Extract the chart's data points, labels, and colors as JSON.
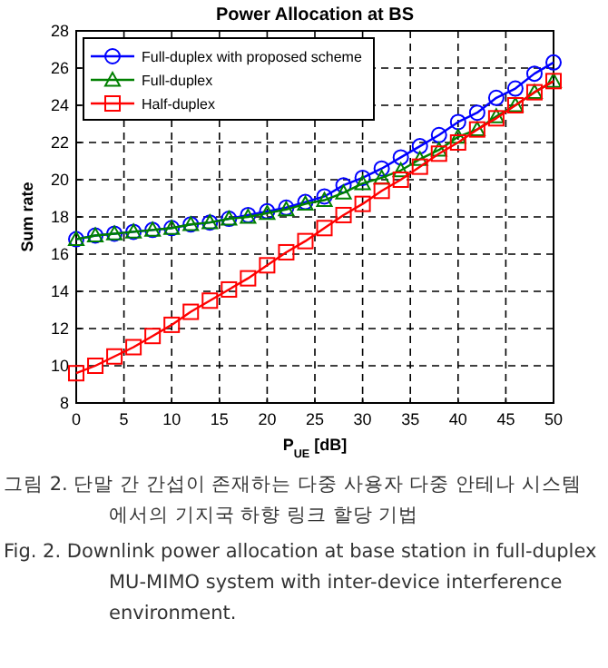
{
  "chart_data": {
    "type": "line",
    "title": "Power Allocation at BS",
    "xlabel": "P$_{UE}$ [dB]",
    "ylabel": "Sum rate",
    "x": [
      0,
      2,
      4,
      6,
      8,
      10,
      12,
      14,
      16,
      18,
      20,
      22,
      24,
      26,
      28,
      30,
      32,
      34,
      36,
      38,
      40,
      42,
      44,
      46,
      48,
      50
    ],
    "series": [
      {
        "name": "Full-duplex with proposed scheme",
        "color": "#0000ff",
        "marker": "circle",
        "values": [
          16.8,
          17.0,
          17.1,
          17.2,
          17.3,
          17.4,
          17.6,
          17.7,
          17.9,
          18.1,
          18.3,
          18.5,
          18.8,
          19.1,
          19.7,
          20.1,
          20.6,
          21.2,
          21.8,
          22.4,
          23.1,
          23.6,
          24.4,
          24.9,
          25.7,
          26.3
        ]
      },
      {
        "name": "Full-duplex",
        "color": "#008000",
        "marker": "triangle",
        "values": [
          16.8,
          17.0,
          17.1,
          17.2,
          17.3,
          17.4,
          17.6,
          17.7,
          17.9,
          18.0,
          18.2,
          18.4,
          18.7,
          18.9,
          19.3,
          19.8,
          20.1,
          20.5,
          21.1,
          21.6,
          22.3,
          22.7,
          23.4,
          24.0,
          24.7,
          25.3
        ]
      },
      {
        "name": "Half-duplex",
        "color": "#ff0000",
        "marker": "square",
        "values": [
          9.6,
          10.0,
          10.5,
          11.0,
          11.6,
          12.2,
          12.9,
          13.5,
          14.1,
          14.7,
          15.4,
          16.1,
          16.7,
          17.4,
          18.1,
          18.7,
          19.4,
          20.0,
          20.7,
          21.4,
          22.0,
          22.7,
          23.3,
          24.0,
          24.7,
          25.3
        ]
      }
    ],
    "xlim": [
      0,
      50
    ],
    "xticks": [
      0,
      5,
      10,
      15,
      20,
      25,
      30,
      35,
      40,
      45,
      50
    ],
    "ylim": [
      8,
      28
    ],
    "yticks": [
      8,
      10,
      12,
      14,
      16,
      18,
      20,
      22,
      24,
      26,
      28
    ],
    "grid": true,
    "legend": "top left",
    "line_style": "solid",
    "annotations": [
      "그림 2. 단말 간 간섭이 존재하는 다중 사용자 다중 안테나 시스템에서의 기지국 하향 링크 할당 기법",
      "Fig. 2. Downlink power allocation at base station in full-duplex MU-MIMO system with inter-device interference environment."
    ]
  }
}
